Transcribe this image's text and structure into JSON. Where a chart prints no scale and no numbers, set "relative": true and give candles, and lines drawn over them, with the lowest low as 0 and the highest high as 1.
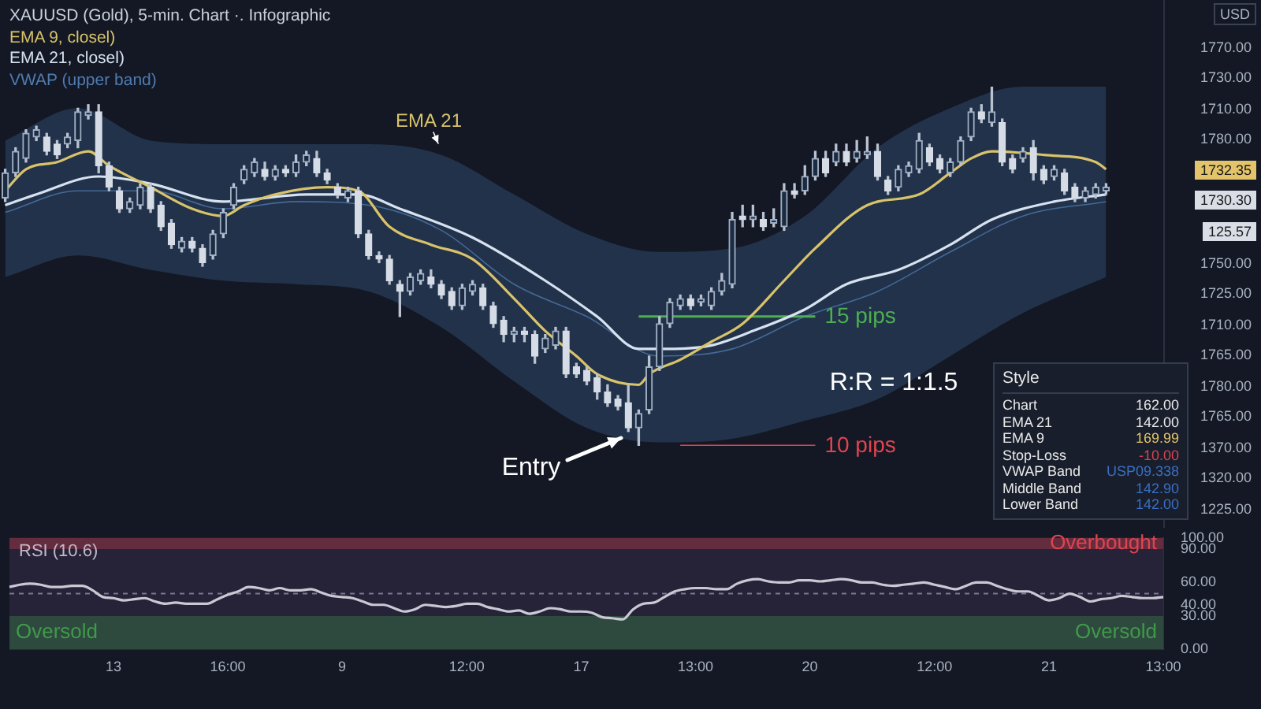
{
  "chart_data": [
    {
      "type": "candlestick",
      "title": "XAUUSD (Gold), 5-min. Chart ·. Infographic",
      "relative": true,
      "legend": "top left",
      "categories": [
        null,
        null,
        null,
        null,
        null,
        null,
        null,
        null,
        null,
        null,
        null,
        null,
        null,
        null,
        null,
        null,
        null,
        null,
        null,
        null,
        null,
        null,
        null,
        null,
        null,
        null,
        null,
        null,
        null,
        null,
        null,
        null,
        null,
        null,
        null,
        null,
        null,
        null,
        null,
        null,
        null,
        null,
        null,
        null,
        null,
        null,
        null,
        null,
        null,
        null,
        null,
        null,
        null,
        null,
        null,
        null,
        null,
        null,
        null,
        null,
        null,
        null,
        null,
        null,
        null,
        null,
        null,
        null,
        null,
        null,
        null,
        null,
        null,
        null,
        null,
        null,
        null,
        null,
        null,
        null,
        null,
        null,
        null,
        null,
        null,
        null,
        null,
        null,
        null,
        null,
        null,
        null,
        null,
        null,
        null,
        null,
        null,
        null,
        null,
        null,
        null,
        null,
        null,
        null,
        null,
        null,
        null
      ],
      "ohlc": [
        [
          0.69,
          0.77,
          0.68,
          0.76
        ],
        [
          0.76,
          0.83,
          0.75,
          0.82
        ],
        [
          0.8,
          0.88,
          0.79,
          0.87
        ],
        [
          0.86,
          0.89,
          0.85,
          0.88
        ],
        [
          0.86,
          0.87,
          0.81,
          0.82
        ],
        [
          0.84,
          0.85,
          0.8,
          0.81
        ],
        [
          0.84,
          0.87,
          0.83,
          0.86
        ],
        [
          0.85,
          0.94,
          0.83,
          0.93
        ],
        [
          0.92,
          0.95,
          0.91,
          0.93
        ],
        [
          0.93,
          0.95,
          0.76,
          0.78
        ],
        [
          0.78,
          0.79,
          0.71,
          0.72
        ],
        [
          0.71,
          0.72,
          0.65,
          0.66
        ],
        [
          0.66,
          0.69,
          0.65,
          0.68
        ],
        [
          0.67,
          0.73,
          0.66,
          0.72
        ],
        [
          0.72,
          0.73,
          0.65,
          0.66
        ],
        [
          0.67,
          0.68,
          0.6,
          0.61
        ],
        [
          0.62,
          0.63,
          0.55,
          0.56
        ],
        [
          0.55,
          0.58,
          0.54,
          0.57
        ],
        [
          0.57,
          0.58,
          0.54,
          0.55
        ],
        [
          0.55,
          0.56,
          0.5,
          0.51
        ],
        [
          0.53,
          0.6,
          0.52,
          0.59
        ],
        [
          0.59,
          0.66,
          0.58,
          0.65
        ],
        [
          0.67,
          0.73,
          0.66,
          0.72
        ],
        [
          0.74,
          0.78,
          0.73,
          0.77
        ],
        [
          0.76,
          0.8,
          0.75,
          0.79
        ],
        [
          0.77,
          0.79,
          0.74,
          0.75
        ],
        [
          0.75,
          0.78,
          0.74,
          0.77
        ],
        [
          0.77,
          0.78,
          0.75,
          0.76
        ],
        [
          0.76,
          0.81,
          0.75,
          0.79
        ],
        [
          0.79,
          0.82,
          0.78,
          0.81
        ],
        [
          0.8,
          0.82,
          0.75,
          0.76
        ],
        [
          0.76,
          0.77,
          0.73,
          0.74
        ],
        [
          0.72,
          0.73,
          0.69,
          0.7
        ],
        [
          0.69,
          0.72,
          0.68,
          0.71
        ],
        [
          0.71,
          0.72,
          0.58,
          0.59
        ],
        [
          0.59,
          0.6,
          0.52,
          0.53
        ],
        [
          0.53,
          0.54,
          0.51,
          0.52
        ],
        [
          0.52,
          0.53,
          0.45,
          0.46
        ],
        [
          0.45,
          0.46,
          0.36,
          0.43
        ],
        [
          0.43,
          0.48,
          0.42,
          0.47
        ],
        [
          0.46,
          0.49,
          0.45,
          0.48
        ],
        [
          0.47,
          0.49,
          0.44,
          0.45
        ],
        [
          0.45,
          0.46,
          0.41,
          0.42
        ],
        [
          0.43,
          0.44,
          0.38,
          0.39
        ],
        [
          0.39,
          0.45,
          0.38,
          0.44
        ],
        [
          0.43,
          0.46,
          0.42,
          0.45
        ],
        [
          0.44,
          0.45,
          0.38,
          0.39
        ],
        [
          0.39,
          0.4,
          0.33,
          0.34
        ],
        [
          0.35,
          0.36,
          0.29,
          0.31
        ],
        [
          0.31,
          0.33,
          0.29,
          0.32
        ],
        [
          0.32,
          0.33,
          0.29,
          0.31
        ],
        [
          0.31,
          0.32,
          0.23,
          0.25
        ],
        [
          0.27,
          0.31,
          0.26,
          0.3
        ],
        [
          0.28,
          0.33,
          0.27,
          0.32
        ],
        [
          0.32,
          0.33,
          0.19,
          0.2
        ],
        [
          0.22,
          0.23,
          0.19,
          0.2
        ],
        [
          0.21,
          0.22,
          0.17,
          0.18
        ],
        [
          0.19,
          0.2,
          0.13,
          0.15
        ],
        [
          0.15,
          0.17,
          0.11,
          0.12
        ],
        [
          0.13,
          0.14,
          0.1,
          0.11
        ],
        [
          0.12,
          0.17,
          0.04,
          0.05
        ],
        [
          0.05,
          0.1,
          0.0,
          0.09
        ],
        [
          0.1,
          0.25,
          0.09,
          0.22
        ],
        [
          0.22,
          0.36,
          0.21,
          0.34
        ],
        [
          0.34,
          0.41,
          0.33,
          0.4
        ],
        [
          0.39,
          0.42,
          0.38,
          0.41
        ],
        [
          0.41,
          0.42,
          0.38,
          0.39
        ],
        [
          0.4,
          0.42,
          0.39,
          0.41
        ],
        [
          0.39,
          0.44,
          0.38,
          0.43
        ],
        [
          0.43,
          0.48,
          0.42,
          0.46
        ],
        [
          0.45,
          0.65,
          0.44,
          0.63
        ],
        [
          0.64,
          0.67,
          0.61,
          0.63
        ],
        [
          0.63,
          0.67,
          0.61,
          0.64
        ],
        [
          0.63,
          0.65,
          0.6,
          0.61
        ],
        [
          0.62,
          0.66,
          0.61,
          0.63
        ],
        [
          0.61,
          0.73,
          0.6,
          0.71
        ],
        [
          0.71,
          0.73,
          0.69,
          0.7
        ],
        [
          0.71,
          0.78,
          0.7,
          0.75
        ],
        [
          0.75,
          0.82,
          0.74,
          0.8
        ],
        [
          0.8,
          0.82,
          0.75,
          0.76
        ],
        [
          0.79,
          0.84,
          0.78,
          0.82
        ],
        [
          0.82,
          0.84,
          0.78,
          0.79
        ],
        [
          0.8,
          0.85,
          0.79,
          0.82
        ],
        [
          0.81,
          0.86,
          0.8,
          0.82
        ],
        [
          0.82,
          0.84,
          0.74,
          0.75
        ],
        [
          0.74,
          0.75,
          0.7,
          0.71
        ],
        [
          0.72,
          0.78,
          0.71,
          0.77
        ],
        [
          0.76,
          0.79,
          0.75,
          0.78
        ],
        [
          0.77,
          0.87,
          0.76,
          0.85
        ],
        [
          0.83,
          0.84,
          0.78,
          0.79
        ],
        [
          0.8,
          0.81,
          0.76,
          0.77
        ],
        [
          0.76,
          0.8,
          0.75,
          0.79
        ],
        [
          0.79,
          0.86,
          0.78,
          0.85
        ],
        [
          0.86,
          0.94,
          0.85,
          0.93
        ],
        [
          0.93,
          0.95,
          0.9,
          0.91
        ],
        [
          0.9,
          1.0,
          0.89,
          0.93
        ],
        [
          0.9,
          0.91,
          0.78,
          0.79
        ],
        [
          0.8,
          0.81,
          0.76,
          0.77
        ],
        [
          0.8,
          0.83,
          0.79,
          0.82
        ],
        [
          0.83,
          0.85,
          0.74,
          0.76
        ],
        [
          0.77,
          0.78,
          0.73,
          0.74
        ],
        [
          0.75,
          0.78,
          0.74,
          0.77
        ],
        [
          0.76,
          0.77,
          0.7,
          0.71
        ],
        [
          0.72,
          0.73,
          0.68,
          0.69
        ],
        [
          0.69,
          0.72,
          0.68,
          0.71
        ],
        [
          0.7,
          0.73,
          0.69,
          0.72
        ],
        [
          0.71,
          0.73,
          0.7,
          0.72
        ]
      ],
      "series": [
        {
          "name": "EMA 9, closel)",
          "type": "line",
          "color": "#d9c36a",
          "values": [
            0.71,
            null,
            0.77,
            null,
            null,
            0.79,
            null,
            null,
            0.82,
            null,
            0.78,
            null,
            null,
            null,
            0.72,
            null,
            null,
            null,
            0.66,
            null,
            null,
            0.64,
            null,
            0.67,
            null,
            null,
            0.7,
            null,
            null,
            null,
            null,
            0.72,
            null,
            null,
            0.71,
            null,
            null,
            0.61,
            null,
            null,
            null,
            0.56,
            null,
            null,
            null,
            0.52,
            null,
            null,
            null,
            0.41,
            null,
            null,
            0.32,
            null,
            null,
            0.25,
            null,
            0.2,
            null,
            null,
            null,
            0.17,
            0.2,
            null,
            null,
            0.24,
            null,
            null,
            0.29,
            null,
            null,
            0.34,
            null,
            null,
            null,
            0.46,
            null,
            null,
            0.55,
            null,
            null,
            null,
            null,
            0.67,
            null,
            null,
            null,
            null,
            0.7,
            null,
            null,
            0.76,
            null,
            0.8,
            null,
            0.82,
            null,
            null,
            null,
            null,
            0.81,
            null,
            null,
            null,
            null,
            0.79,
            0.77
          ]
        },
        {
          "name": "EMA 21, closel)",
          "type": "line",
          "color": "#d6e2f0",
          "values": [
            0.67,
            null,
            null,
            0.7,
            null,
            null,
            null,
            null,
            null,
            0.75,
            null,
            null,
            null,
            null,
            0.73,
            null,
            null,
            null,
            null,
            null,
            null,
            0.68,
            null,
            null,
            null,
            null,
            null,
            null,
            null,
            0.7,
            null,
            null,
            null,
            null,
            0.7,
            null,
            null,
            null,
            0.66,
            null,
            null,
            null,
            null,
            null,
            null,
            0.58,
            null,
            null,
            null,
            null,
            null,
            null,
            0.46,
            null,
            null,
            null,
            null,
            0.36,
            null,
            null,
            null,
            0.27,
            null,
            0.27,
            null,
            null,
            null,
            null,
            0.28,
            null,
            null,
            null,
            0.32,
            null,
            null,
            null,
            null,
            0.38,
            null,
            null,
            null,
            0.45,
            null,
            null,
            null,
            null,
            0.49,
            null,
            null,
            null,
            null,
            0.56,
            null,
            null,
            null,
            0.63,
            null,
            null,
            null,
            null,
            null,
            0.68,
            null,
            null,
            null,
            null,
            0.7
          ]
        },
        {
          "name": "VWAP (upper band)",
          "type": "line",
          "color": "#4f7bb0",
          "values": [
            0.65,
            null,
            null,
            null,
            null,
            null,
            null,
            0.71,
            null,
            null,
            null,
            null,
            null,
            null,
            0.71,
            null,
            null,
            null,
            null,
            null,
            null,
            0.66,
            null,
            null,
            null,
            null,
            null,
            null,
            0.68,
            null,
            null,
            null,
            null,
            null,
            null,
            0.67,
            null,
            null,
            null,
            null,
            null,
            null,
            0.6,
            null,
            null,
            null,
            null,
            null,
            null,
            0.45,
            null,
            null,
            null,
            null,
            null,
            null,
            0.36,
            null,
            null,
            null,
            null,
            null,
            null,
            0.25,
            null,
            null,
            null,
            null,
            null,
            null,
            0.27,
            null,
            null,
            null,
            null,
            null,
            null,
            0.36,
            null,
            null,
            null,
            null,
            null,
            null,
            0.43,
            null,
            null,
            null,
            null,
            null,
            null,
            0.54,
            null,
            null,
            null,
            null,
            null,
            null,
            0.64,
            null,
            null,
            null,
            null,
            null,
            null,
            null,
            0.68
          ],
          "upper": [
            0.85,
            null,
            null,
            null,
            null,
            null,
            null,
            0.94,
            null,
            null,
            null,
            null,
            null,
            null,
            0.85,
            null,
            null,
            null,
            null,
            null,
            null,
            0.84,
            null,
            null,
            null,
            null,
            null,
            null,
            0.84,
            null,
            null,
            null,
            null,
            null,
            null,
            0.84,
            null,
            null,
            null,
            null,
            null,
            null,
            0.81,
            null,
            null,
            null,
            null,
            null,
            null,
            0.7,
            null,
            null,
            null,
            null,
            null,
            null,
            0.59,
            null,
            null,
            null,
            null,
            null,
            null,
            0.54,
            null,
            null,
            null,
            null,
            null,
            null,
            0.55,
            null,
            null,
            null,
            null,
            null,
            null,
            0.64,
            null,
            null,
            null,
            null,
            null,
            null,
            0.83,
            null,
            null,
            null,
            null,
            null,
            null,
            0.94,
            null,
            null,
            null,
            null,
            null,
            null,
            1.0,
            null,
            null,
            null,
            null,
            null,
            null,
            null,
            1.0
          ],
          "lower": [
            0.47,
            null,
            null,
            null,
            null,
            null,
            null,
            0.53,
            null,
            null,
            null,
            null,
            null,
            null,
            0.49,
            null,
            null,
            null,
            null,
            null,
            null,
            0.46,
            null,
            null,
            null,
            null,
            null,
            null,
            0.45,
            null,
            null,
            null,
            null,
            null,
            null,
            0.43,
            null,
            null,
            null,
            null,
            null,
            null,
            0.33,
            null,
            null,
            null,
            null,
            null,
            null,
            0.18,
            null,
            null,
            null,
            null,
            null,
            null,
            0.05,
            null,
            null,
            null,
            null,
            null,
            null,
            0.01,
            null,
            null,
            null,
            null,
            null,
            null,
            0.02,
            null,
            null,
            null,
            null,
            null,
            null,
            0.07,
            null,
            null,
            null,
            null,
            null,
            null,
            0.13,
            null,
            null,
            null,
            null,
            null,
            null,
            0.25,
            null,
            null,
            null,
            null,
            null,
            null,
            0.37,
            null,
            null,
            null,
            null,
            null,
            null,
            null,
            0.47
          ]
        },
        {
          "name": "15 pips",
          "type": "line",
          "color": "#4caf50",
          "values": [
            null,
            null,
            null,
            null,
            null,
            null,
            null,
            null,
            null,
            null,
            null,
            null,
            null,
            null,
            null,
            null,
            null,
            null,
            null,
            null,
            null,
            null,
            null,
            null,
            null,
            null,
            null,
            null,
            null,
            null,
            null,
            null,
            null,
            null,
            null,
            null,
            null,
            null,
            null,
            null,
            null,
            null,
            null,
            null,
            null,
            null,
            null,
            null,
            null,
            null,
            null,
            null,
            null,
            null,
            null,
            null,
            null,
            null,
            null,
            null,
            null,
            0.36,
            null,
            null,
            null,
            null,
            null,
            null,
            null,
            null,
            null,
            null,
            null,
            null,
            null,
            null,
            null,
            null,
            0.36,
            null,
            null,
            null,
            null,
            null,
            null,
            null,
            null,
            null,
            null,
            null,
            null,
            null,
            null,
            null,
            null,
            null,
            null,
            null,
            null,
            null,
            null,
            null,
            null,
            null,
            null,
            null,
            null
          ]
        },
        {
          "name": "10 pips",
          "type": "line",
          "color": "#e0444e",
          "values": [
            null,
            null,
            null,
            null,
            null,
            null,
            null,
            null,
            null,
            null,
            null,
            null,
            null,
            null,
            null,
            null,
            null,
            null,
            null,
            null,
            null,
            null,
            null,
            null,
            null,
            null,
            null,
            null,
            null,
            null,
            null,
            null,
            null,
            null,
            null,
            null,
            null,
            null,
            null,
            null,
            null,
            null,
            null,
            null,
            null,
            null,
            null,
            null,
            null,
            null,
            null,
            null,
            null,
            null,
            null,
            null,
            null,
            null,
            null,
            null,
            null,
            null,
            null,
            null,
            null,
            0,
            null,
            null,
            null,
            null,
            null,
            null,
            null,
            null,
            null,
            null,
            null,
            null,
            0,
            null,
            null,
            null,
            null,
            null,
            null,
            null,
            null,
            null,
            null,
            null,
            null,
            null,
            null,
            null,
            null,
            null,
            null,
            null,
            null,
            null,
            null,
            null,
            null,
            null,
            null,
            null,
            null
          ]
        }
      ],
      "annotations": [
        "EMA 21",
        "Entry",
        "R:R = 1:1.5",
        "USD",
        "1770.00",
        "1730.00",
        "1710.00",
        "1780.00",
        "1732.35",
        "1730.30",
        "125.57",
        "1750.00",
        "1725.00",
        "1710.00",
        "1765.00",
        "1780.00",
        "1765.00",
        "1370.00",
        "1320.00",
        "1225.00"
      ]
    },
    {
      "type": "line",
      "title": "RSI (10.6)",
      "ylim": [
        0,
        100
      ],
      "yticks": [
        {
          "value": 100,
          "label": "100.00"
        },
        {
          "value": 90,
          "label": "90.00"
        },
        {
          "value": 60,
          "label": "60.00"
        },
        {
          "value": 40,
          "label": "40.00"
        },
        {
          "value": 30,
          "label": "30.00"
        },
        {
          "value": 0,
          "label": "0.00"
        }
      ],
      "categories": [
        null,
        null,
        null,
        null,
        null,
        null,
        null,
        null,
        null,
        null,
        "13",
        null,
        null,
        null,
        null,
        null,
        null,
        null,
        null,
        null,
        null,
        "16:00",
        null,
        null,
        null,
        null,
        null,
        null,
        null,
        null,
        null,
        null,
        "9",
        null,
        null,
        null,
        null,
        null,
        null,
        null,
        null,
        null,
        null,
        null,
        "12:00",
        null,
        null,
        null,
        null,
        null,
        null,
        null,
        null,
        null,
        null,
        "17",
        null,
        null,
        null,
        null,
        null,
        null,
        null,
        null,
        null,
        null,
        "13:00",
        null,
        null,
        null,
        null,
        null,
        null,
        null,
        null,
        null,
        null,
        "20",
        null,
        null,
        null,
        null,
        null,
        null,
        null,
        null,
        null,
        null,
        null,
        "12:00",
        null,
        null,
        null,
        null,
        null,
        null,
        null,
        null,
        null,
        null,
        "21",
        null,
        null,
        null,
        null,
        null,
        null,
        null,
        null,
        null,
        null,
        "13:00"
      ],
      "series": [
        {
          "color": "#c9c9d4",
          "values": [
            56,
            58,
            59,
            58,
            56,
            56,
            57,
            57,
            53,
            47,
            46,
            44,
            45,
            46,
            43,
            41,
            42,
            41,
            41,
            41,
            45,
            49,
            52,
            56,
            55,
            53,
            55,
            53,
            53,
            54,
            51,
            48,
            47,
            46,
            43,
            40,
            40,
            37,
            34,
            36,
            40,
            39,
            38,
            39,
            41,
            41,
            38,
            36,
            34,
            35,
            32,
            34,
            37,
            36,
            34,
            34,
            33,
            29,
            28,
            27,
            36,
            41,
            42,
            47,
            52,
            54,
            55,
            55,
            54,
            54,
            59,
            62,
            63,
            61,
            60,
            60,
            62,
            62,
            61,
            62,
            63,
            62,
            60,
            60,
            58,
            57,
            58,
            59,
            60,
            58,
            56,
            54,
            57,
            60,
            60,
            57,
            54,
            52,
            52,
            48,
            44,
            46,
            50,
            47,
            43,
            45,
            46,
            48,
            47,
            46,
            46,
            47
          ]
        }
      ],
      "bands": [
        {
          "axis": "y",
          "from": 90,
          "to": 100,
          "label": "Overbought",
          "color": "#e0444e"
        },
        {
          "axis": "y",
          "from": 0,
          "to": 30,
          "label": "Oversold",
          "color": "#3f9a4a"
        }
      ],
      "ref_lines": [
        {
          "axis": "y",
          "value": 50,
          "line_style": "dashed",
          "color": "#7c7890"
        }
      ],
      "annotations": [
        "Oversold"
      ]
    },
    {
      "type": "other",
      "title": "Style",
      "categories": [
        "Chart",
        "EMA 21",
        "EMA 9",
        "Stop-Loss",
        "VWAP Band",
        "Middle Band",
        "Lower Band"
      ],
      "value_labels": [
        "162.00",
        "142.00",
        "169.99",
        "-10.00",
        "USP09.338",
        "142.90",
        "142.00"
      ],
      "colors": [
        "#e8e8e8",
        "#e8e8e8",
        "#e3c46a",
        "#d9434e",
        "#3a6fc4",
        "#3a6fc4",
        "#3a6fc4"
      ]
    }
  ]
}
